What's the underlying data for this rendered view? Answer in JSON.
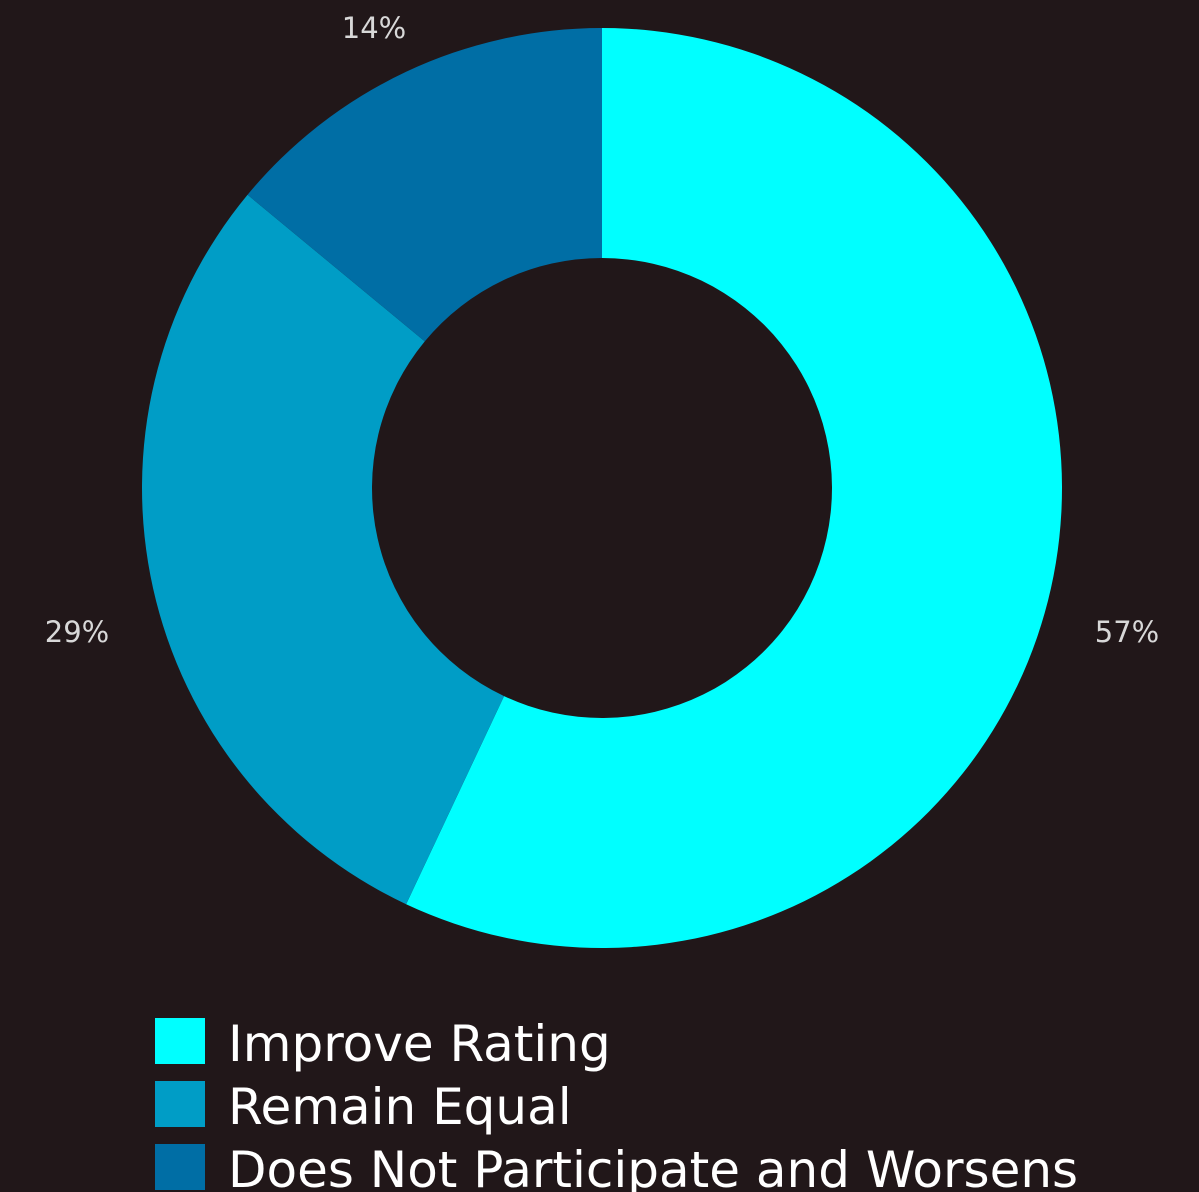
{
  "chart_data": {
    "type": "pie",
    "donut": true,
    "legend_position": "bottom-left",
    "slices": [
      {
        "label": "Improve Rating",
        "value": 57,
        "display": "57%",
        "color": "#00ffff"
      },
      {
        "label": "Remain Equal",
        "value": 29,
        "display": "29%",
        "color": "#009dc6"
      },
      {
        "label": "Does Not Participate and Worsens",
        "value": 14,
        "display": "14%",
        "color": "#006ea5"
      }
    ]
  }
}
